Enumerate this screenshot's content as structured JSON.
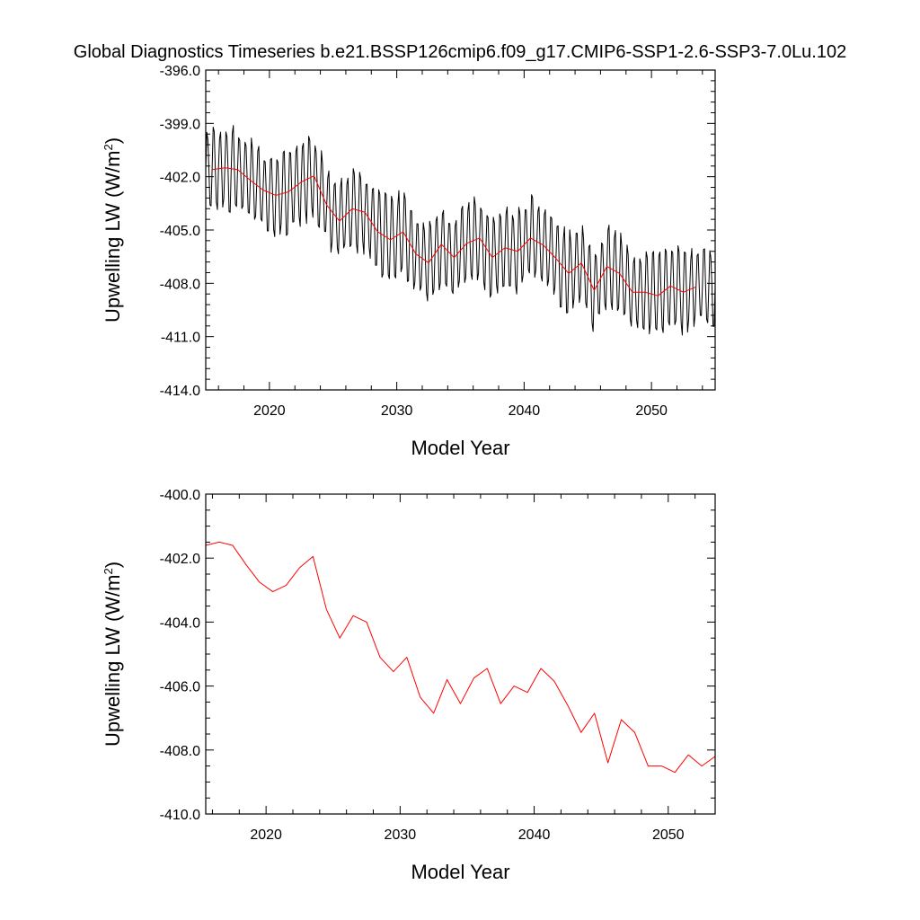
{
  "figure": {
    "title": "Global Diagnostics Timeseries b.e21.BSSP126cmip6.f09_g17.CMIP6-SSP1-2.6-SSP3-7.0Lu.102",
    "colors": {
      "monthly": "#000000",
      "annual": "#ff0000",
      "frame": "#000000"
    }
  },
  "chart_data": [
    {
      "type": "line",
      "xlabel": "Model Year",
      "ylabel_prefix": "Upwelling LW (W/m",
      "ylabel_sup": "2",
      "ylabel_suffix": ")",
      "xlim": [
        2015,
        2055
      ],
      "ylim": [
        -414.0,
        -396.0
      ],
      "x_ticks": [
        2020,
        2030,
        2040,
        2050
      ],
      "x_tick_labels": [
        "2020",
        "2030",
        "2040",
        "2050"
      ],
      "y_ticks": [
        -396.0,
        -399.0,
        -402.0,
        -405.0,
        -408.0,
        -411.0,
        -414.0
      ],
      "y_tick_labels": [
        "-396.0",
        "-399.0",
        "-402.0",
        "-405.0",
        "-408.0",
        "-411.0",
        "-414.0"
      ],
      "grid": false,
      "series": [
        {
          "style": "monthly",
          "color": "#000000",
          "generator": "seasonal_cycle",
          "amplitude": 2.3,
          "cycles_per_year": 2,
          "start_year": 2015.0,
          "end_year": 2055.0
        },
        {
          "style": "annual",
          "color": "#ff0000",
          "x": [
            2015.5,
            2016.5,
            2017.5,
            2018.5,
            2019.5,
            2020.5,
            2021.5,
            2022.5,
            2023.5,
            2024.5,
            2025.5,
            2026.5,
            2027.5,
            2028.5,
            2029.5,
            2030.5,
            2031.5,
            2032.5,
            2033.5,
            2034.5,
            2035.5,
            2036.5,
            2037.5,
            2038.5,
            2039.5,
            2040.5,
            2041.5,
            2042.5,
            2043.5,
            2044.5,
            2045.5,
            2046.5,
            2047.5,
            2048.5,
            2049.5,
            2050.5,
            2051.5,
            2052.5,
            2053.5
          ],
          "y": [
            -401.6,
            -401.5,
            -401.6,
            -402.2,
            -402.75,
            -403.05,
            -402.85,
            -402.3,
            -401.95,
            -403.6,
            -404.5,
            -403.8,
            -404.0,
            -405.1,
            -405.55,
            -405.1,
            -406.35,
            -406.85,
            -405.8,
            -406.55,
            -405.75,
            -405.45,
            -406.55,
            -406.0,
            -406.2,
            -405.45,
            -405.85,
            -406.6,
            -407.45,
            -406.85,
            -408.4,
            -407.05,
            -407.45,
            -408.5,
            -408.5,
            -408.7,
            -408.15,
            -408.5,
            -408.2
          ]
        }
      ]
    },
    {
      "type": "line",
      "xlabel": "Model Year",
      "ylabel_prefix": "Upwelling LW (W/m",
      "ylabel_sup": "2",
      "ylabel_suffix": ")",
      "xlim": [
        2015.5,
        2053.5
      ],
      "ylim": [
        -410.0,
        -400.0
      ],
      "x_ticks": [
        2020,
        2030,
        2040,
        2050
      ],
      "x_tick_labels": [
        "2020",
        "2030",
        "2040",
        "2050"
      ],
      "y_ticks": [
        -400.0,
        -402.0,
        -404.0,
        -406.0,
        -408.0,
        -410.0
      ],
      "y_tick_labels": [
        "-400.0",
        "-402.0",
        "-404.0",
        "-406.0",
        "-408.0",
        "-410.0"
      ],
      "grid": false,
      "series": [
        {
          "style": "annual",
          "color": "#ff0000",
          "x": [
            2015.5,
            2016.5,
            2017.5,
            2018.5,
            2019.5,
            2020.5,
            2021.5,
            2022.5,
            2023.5,
            2024.5,
            2025.5,
            2026.5,
            2027.5,
            2028.5,
            2029.5,
            2030.5,
            2031.5,
            2032.5,
            2033.5,
            2034.5,
            2035.5,
            2036.5,
            2037.5,
            2038.5,
            2039.5,
            2040.5,
            2041.5,
            2042.5,
            2043.5,
            2044.5,
            2045.5,
            2046.5,
            2047.5,
            2048.5,
            2049.5,
            2050.5,
            2051.5,
            2052.5,
            2053.5
          ],
          "y": [
            -401.6,
            -401.5,
            -401.6,
            -402.2,
            -402.75,
            -403.05,
            -402.85,
            -402.3,
            -401.95,
            -403.6,
            -404.5,
            -403.8,
            -404.0,
            -405.1,
            -405.55,
            -405.1,
            -406.35,
            -406.85,
            -405.8,
            -406.55,
            -405.75,
            -405.45,
            -406.55,
            -406.0,
            -406.2,
            -405.45,
            -405.85,
            -406.6,
            -407.45,
            -406.85,
            -408.4,
            -407.05,
            -407.45,
            -408.5,
            -408.5,
            -408.7,
            -408.15,
            -408.5,
            -408.2
          ]
        }
      ]
    }
  ]
}
